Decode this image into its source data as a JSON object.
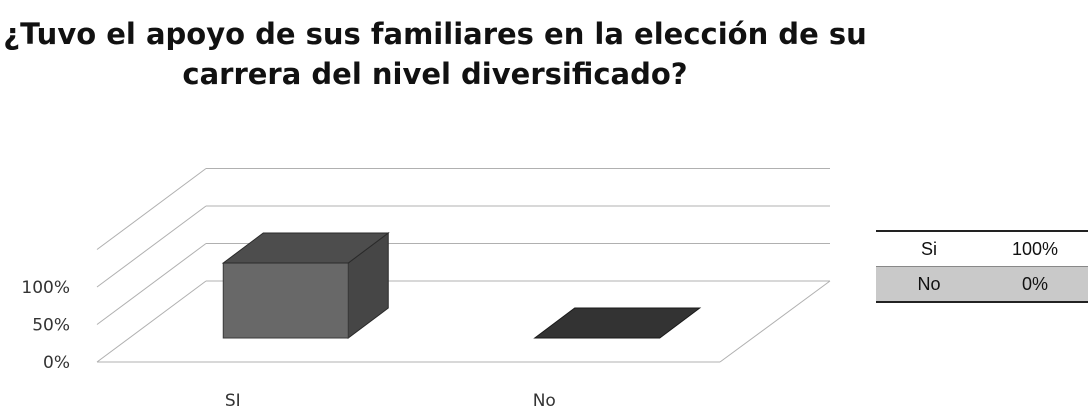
{
  "chart_data": {
    "type": "bar",
    "title_lines": [
      "¿Tuvo el apoyo de sus familiares en la elección de su",
      "carrera del nivel diversificado?"
    ],
    "categories": [
      "SI",
      "No"
    ],
    "values": [
      100,
      0
    ],
    "y_ticks": [
      "0%",
      "50%",
      "100%"
    ],
    "ylim": [
      0,
      100
    ],
    "grid": true,
    "colors": {
      "bar_front": "#686868",
      "bar_side": "#464646",
      "bar_top": "#4d4d4d",
      "gridline": "#b0b0b0"
    },
    "data_table": {
      "rows": [
        {
          "label": "Si",
          "value": "100%"
        },
        {
          "label": "No",
          "value": "0%"
        }
      ]
    }
  }
}
